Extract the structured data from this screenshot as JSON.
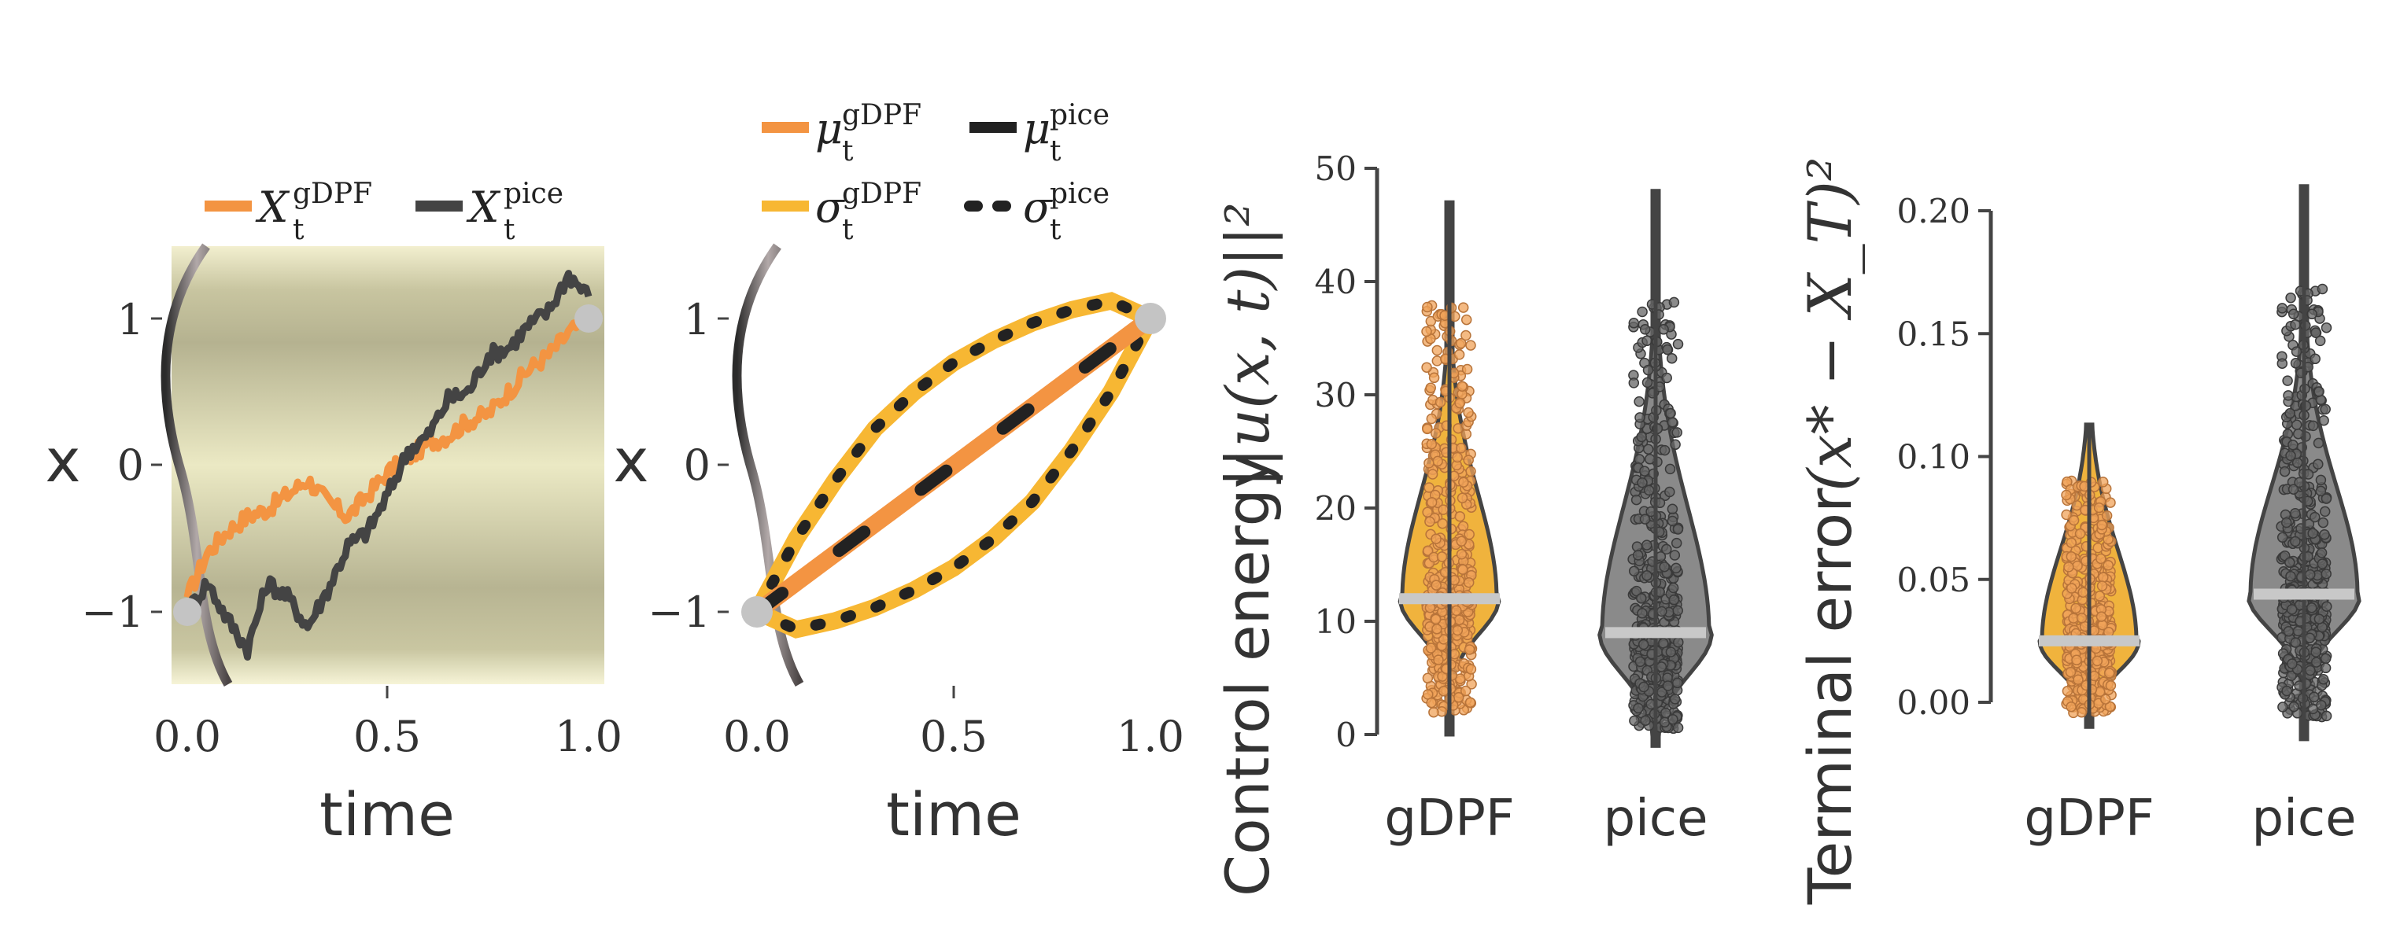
{
  "chart_data": [
    {
      "type": "line",
      "panel": "trajectories",
      "xlabel": "time",
      "ylabel": "x",
      "xticks": [
        "0.0",
        "0.5",
        "1.0"
      ],
      "yticks": [
        "1",
        "0",
        "−1"
      ],
      "xlim": [
        -0.05,
        1.05
      ],
      "ylim": [
        -1.5,
        1.5
      ],
      "background": "potential shading",
      "legend": [
        {
          "symbol": "X",
          "sub": "t",
          "sup": "gDPF",
          "color": "#f39442"
        },
        {
          "symbol": "X",
          "sub": "t",
          "sup": "pice",
          "color": "#444444"
        }
      ],
      "series": [
        {
          "name": "X_t^gDPF",
          "color": "#f39442",
          "x": [
            0,
            0.05,
            0.1,
            0.15,
            0.2,
            0.25,
            0.3,
            0.35,
            0.4,
            0.45,
            0.5,
            0.55,
            0.6,
            0.65,
            0.7,
            0.75,
            0.8,
            0.85,
            0.9,
            0.95,
            1.0
          ],
          "y": [
            -0.9,
            -0.6,
            -0.45,
            -0.35,
            -0.3,
            -0.2,
            -0.1,
            -0.25,
            -0.35,
            -0.2,
            -0.05,
            0.05,
            0.15,
            0.2,
            0.3,
            0.35,
            0.5,
            0.65,
            0.75,
            0.9,
            1.0
          ]
        },
        {
          "name": "X_t^pice",
          "color": "#444444",
          "x": [
            0,
            0.05,
            0.1,
            0.15,
            0.2,
            0.25,
            0.3,
            0.35,
            0.4,
            0.45,
            0.5,
            0.55,
            0.6,
            0.65,
            0.7,
            0.75,
            0.8,
            0.85,
            0.9,
            0.95,
            1.0
          ],
          "y": [
            -1.0,
            -0.8,
            -1.05,
            -1.25,
            -0.8,
            -0.9,
            -1.1,
            -0.85,
            -0.55,
            -0.45,
            -0.2,
            0.1,
            0.2,
            0.45,
            0.5,
            0.75,
            0.8,
            0.95,
            1.05,
            1.3,
            1.15
          ]
        }
      ],
      "endpoints": [
        {
          "x": 0,
          "y": -1
        },
        {
          "x": 1,
          "y": 1
        }
      ]
    },
    {
      "type": "line",
      "panel": "mean-and-spread",
      "xlabel": "time",
      "ylabel": "x",
      "xticks": [
        "0.0",
        "0.5",
        "1.0"
      ],
      "yticks": [
        "1",
        "0",
        "−1"
      ],
      "xlim": [
        -0.05,
        1.05
      ],
      "ylim": [
        -1.5,
        1.5
      ],
      "legend": [
        {
          "symbol": "μ",
          "sub": "t",
          "sup": "gDPF",
          "color": "#f39442",
          "style": "solid"
        },
        {
          "symbol": "μ",
          "sub": "t",
          "sup": "pice",
          "color": "#222222",
          "style": "solid"
        },
        {
          "symbol": "σ",
          "sub": "t",
          "sup": "gDPF",
          "color": "#f7b733",
          "style": "solid"
        },
        {
          "symbol": "σ",
          "sub": "t",
          "sup": "pice",
          "color": "#222222",
          "style": "dotted"
        }
      ],
      "series": [
        {
          "name": "mu_gDPF",
          "color": "#f39442",
          "x": [
            0,
            0.1,
            0.2,
            0.3,
            0.4,
            0.5,
            0.6,
            0.7,
            0.8,
            0.9,
            1.0
          ],
          "y": [
            -1,
            -0.8,
            -0.6,
            -0.4,
            -0.2,
            0,
            0.2,
            0.4,
            0.6,
            0.8,
            1
          ]
        },
        {
          "name": "mu_pice",
          "color": "#222222",
          "x": [
            0,
            0.1,
            0.2,
            0.3,
            0.4,
            0.5,
            0.6,
            0.7,
            0.8,
            0.9,
            1.0
          ],
          "y": [
            -1,
            -0.8,
            -0.6,
            -0.4,
            -0.2,
            0,
            0.2,
            0.4,
            0.6,
            0.8,
            1
          ]
        },
        {
          "name": "upper_gDPF",
          "color": "#f7b733",
          "x": [
            0,
            0.1,
            0.2,
            0.3,
            0.4,
            0.5,
            0.6,
            0.7,
            0.8,
            0.9,
            1.0
          ],
          "y": [
            -1,
            -0.5,
            -0.1,
            0.25,
            0.5,
            0.7,
            0.85,
            0.97,
            1.06,
            1.12,
            1
          ]
        },
        {
          "name": "lower_gDPF",
          "color": "#f7b733",
          "x": [
            0,
            0.1,
            0.2,
            0.3,
            0.4,
            0.5,
            0.6,
            0.7,
            0.8,
            0.9,
            1.0
          ],
          "y": [
            -1,
            -1.12,
            -1.06,
            -0.97,
            -0.85,
            -0.7,
            -0.5,
            -0.25,
            0.1,
            0.5,
            1
          ]
        }
      ],
      "endpoints": [
        {
          "x": 0,
          "y": -1
        },
        {
          "x": 1,
          "y": 1
        }
      ]
    },
    {
      "type": "violin",
      "panel": "control-energy",
      "ylabel": "Control energy",
      "ylabel_math": "||u(x, t)||²",
      "yticks": [
        "0",
        "10",
        "20",
        "30",
        "40",
        "50"
      ],
      "ylim": [
        0,
        50
      ],
      "categories": [
        "gDPF",
        "pice"
      ],
      "series": [
        {
          "name": "gDPF",
          "color": "#f0b33d",
          "median": 12,
          "min": 0,
          "max": 47
        },
        {
          "name": "pice",
          "color": "#8a8a8a",
          "median": 9,
          "min": -1,
          "max": 48
        }
      ]
    },
    {
      "type": "violin",
      "panel": "terminal-error",
      "ylabel": "Terminal error",
      "ylabel_math": "(x* − X_T)²",
      "yticks": [
        "0.00",
        "0.05",
        "0.10",
        "0.15",
        "0.20"
      ],
      "ylim": [
        0,
        0.2
      ],
      "categories": [
        "gDPF",
        "pice"
      ],
      "series": [
        {
          "name": "gDPF",
          "color": "#f0b33d",
          "median": 0.025,
          "min": -0.01,
          "max": 0.113
        },
        {
          "name": "pice",
          "color": "#8a8a8a",
          "median": 0.044,
          "min": -0.015,
          "max": 0.21
        }
      ]
    }
  ]
}
